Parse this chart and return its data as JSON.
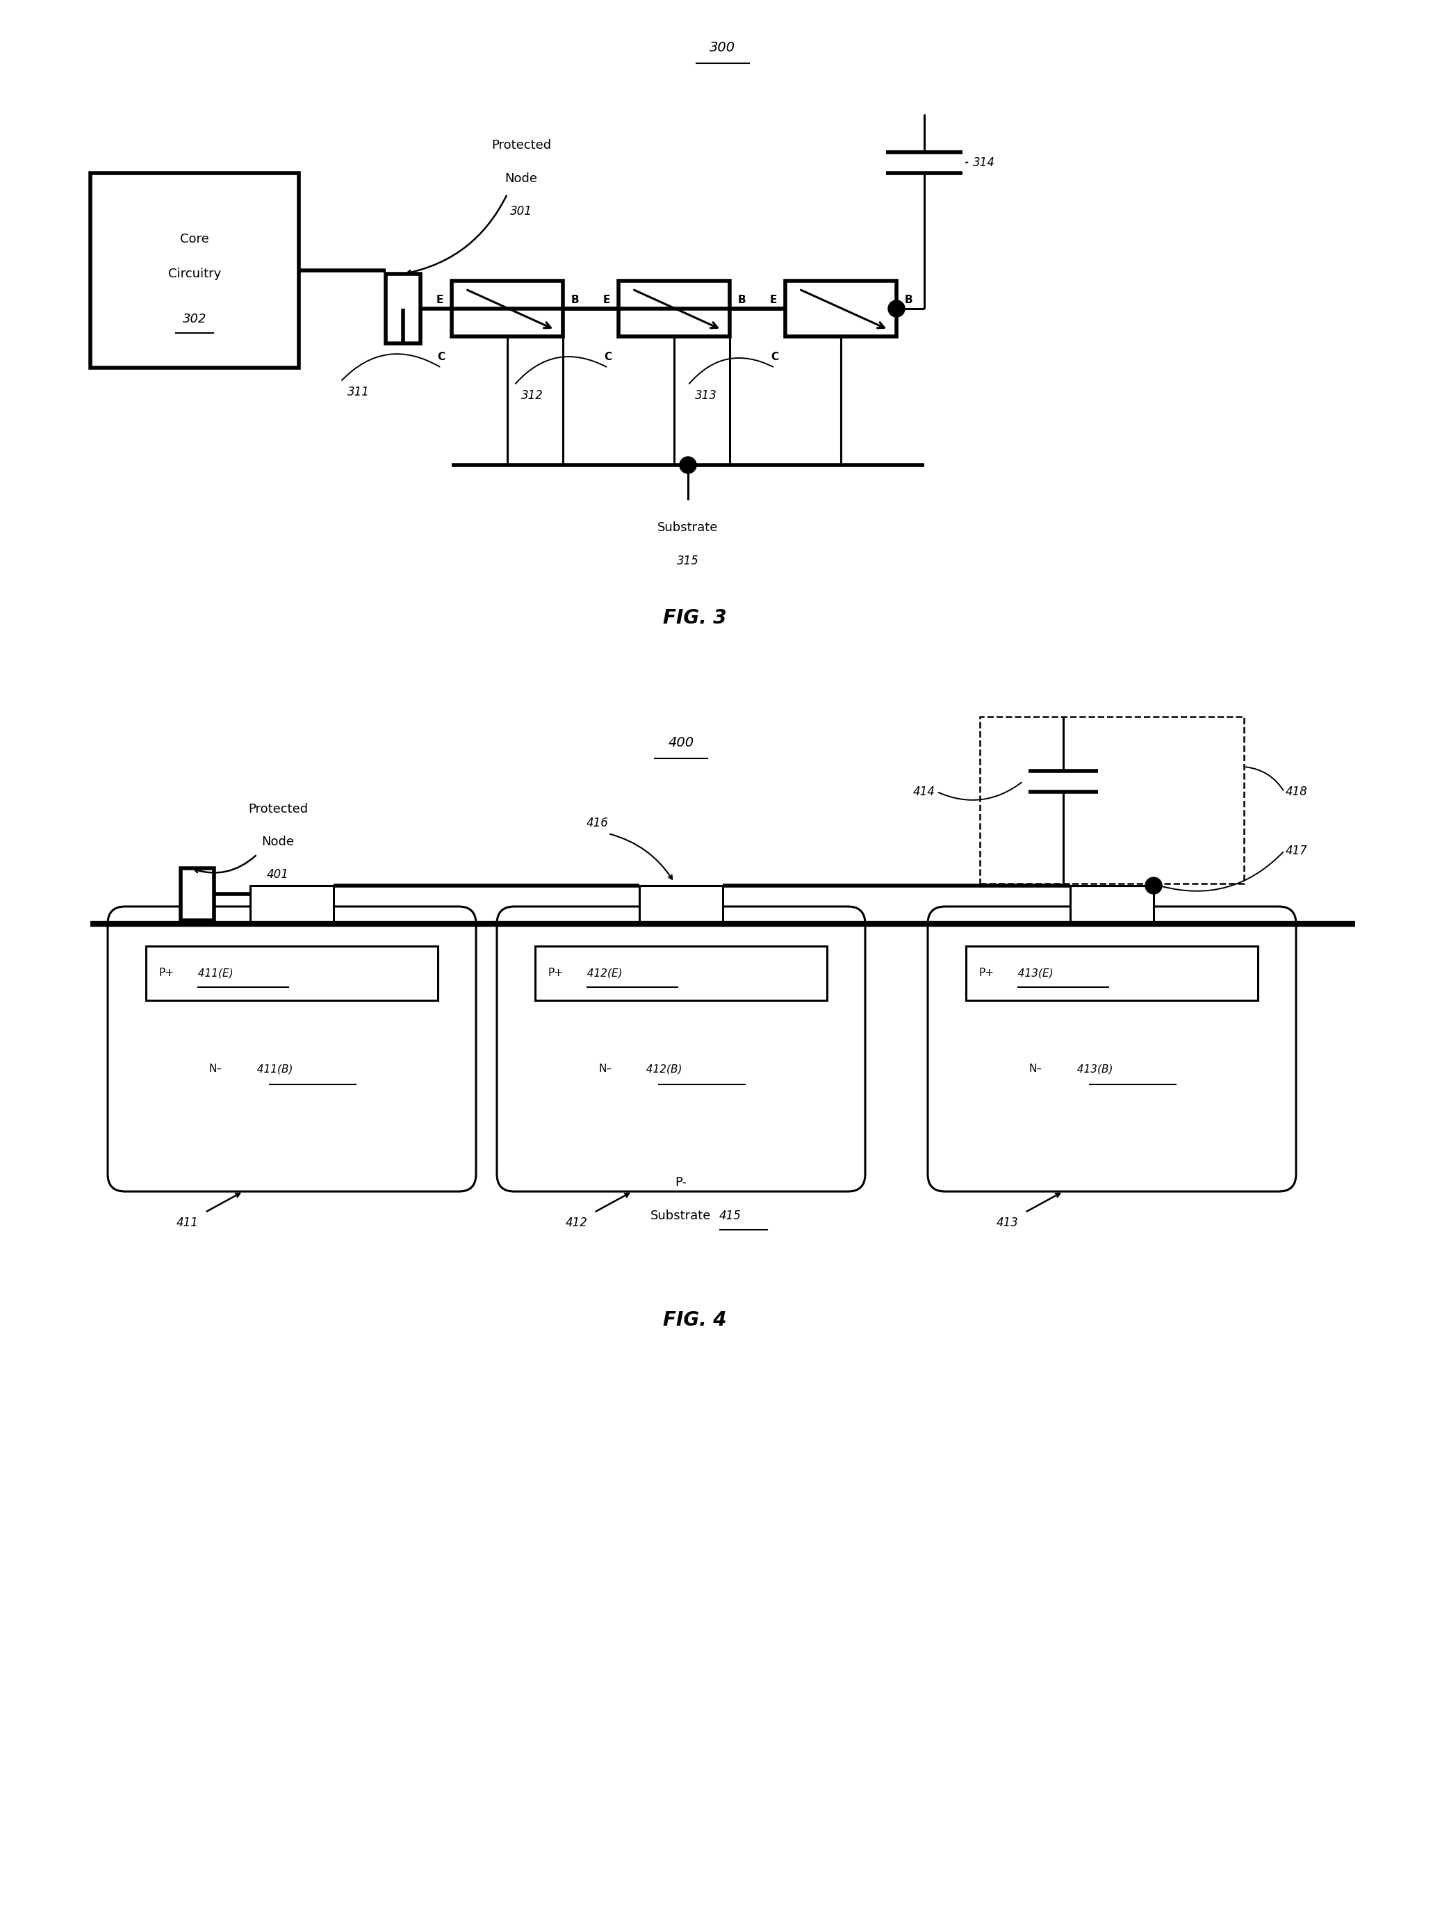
{
  "fig_width": 20.75,
  "fig_height": 27.49,
  "bg_color": "#ffffff",
  "line_color": "#000000",
  "fig3_label": "300",
  "fig3_caption": "FIG. 3",
  "fig4_label": "400",
  "fig4_caption": "FIG. 4"
}
